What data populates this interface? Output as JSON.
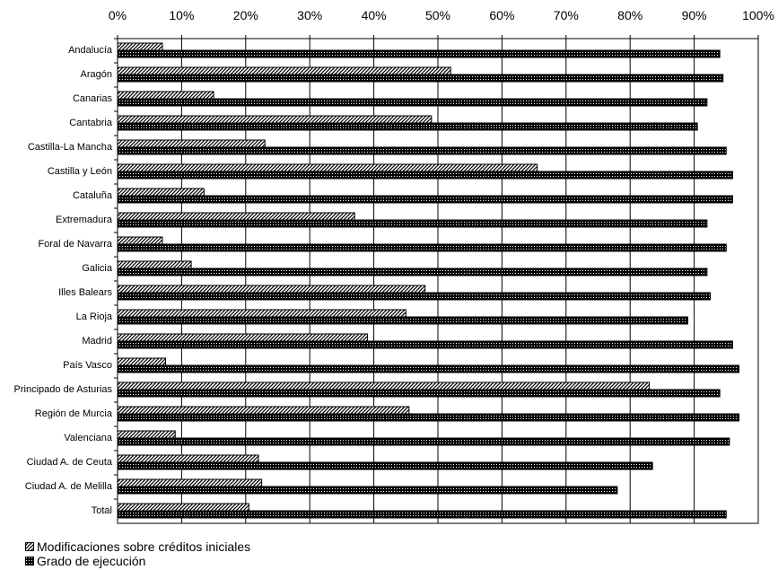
{
  "chart_data": {
    "type": "bar",
    "orientation": "horizontal",
    "xlim": [
      0,
      100
    ],
    "x_ticks": [
      "0%",
      "10%",
      "20%",
      "30%",
      "40%",
      "50%",
      "60%",
      "70%",
      "80%",
      "90%",
      "100%"
    ],
    "grid": "vertical",
    "legend_position": "bottom-left",
    "categories": [
      "Andalucía",
      "Aragón",
      "Canarias",
      "Cantabria",
      "Castilla-La Mancha",
      "Castilla y León",
      "Cataluña",
      "Extremadura",
      "Foral de Navarra",
      "Galicia",
      "Illes Balears",
      "La Rioja",
      "Madrid",
      "País Vasco",
      "Principado de Asturias",
      "Región de Murcia",
      "Valenciana",
      "Ciudad A. de Ceuta",
      "Ciudad A. de Melilla",
      "Total"
    ],
    "series": [
      {
        "name": "Modificaciones sobre créditos iniciales",
        "pattern": "diagonal-hatch",
        "values": [
          7,
          52,
          15,
          49,
          23,
          65.5,
          13.5,
          37,
          7,
          11.5,
          48,
          45,
          39,
          7.5,
          83,
          45.5,
          9,
          22,
          22.5,
          20.5
        ]
      },
      {
        "name": "Grado de ejecución",
        "pattern": "dark-checker",
        "values": [
          94,
          94.5,
          92,
          90.5,
          95,
          96,
          96,
          92,
          95,
          92,
          92.5,
          89,
          96,
          97,
          94,
          97,
          95.5,
          83.5,
          78,
          95
        ]
      }
    ]
  }
}
